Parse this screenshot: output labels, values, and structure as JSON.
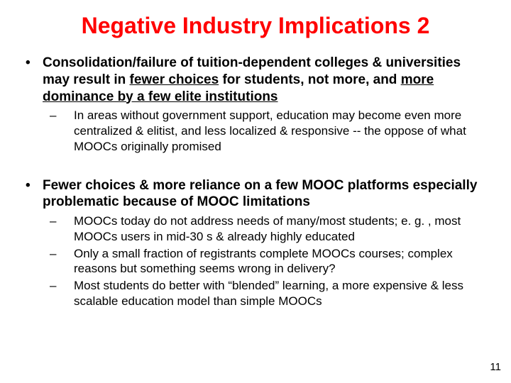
{
  "title": "Negative Industry Implications 2",
  "bullets": [
    {
      "main_pre": "Consolidation/failure of tuition-dependent colleges & universities may result in ",
      "main_u1": "fewer choices",
      "main_mid": " for students, not more, and ",
      "main_u2": "more dominance by a few elite institutions",
      "subs": [
        "In areas without government support, education may become even more centralized & elitist, and less localized & responsive -- the oppose of what MOOCs originally promised"
      ]
    },
    {
      "main_plain": "Fewer choices & more reliance on a few MOOC platforms especially problematic because of MOOC limitations",
      "subs": [
        "MOOCs today do not address needs of many/most students; e. g. , most MOOCs users in mid-30 s & already highly educated",
        "Only a small fraction of registrants complete MOOCs courses; complex reasons but something seems wrong in delivery?",
        "Most students do better with “blended” learning, a more expensive & less scalable education model than simple MOOCs"
      ]
    }
  ],
  "page_number": "11",
  "colors": {
    "title": "#ff0000",
    "text": "#000000",
    "background": "#ffffff"
  },
  "fonts": {
    "title_size": 32,
    "main_size": 19,
    "sub_size": 17
  }
}
